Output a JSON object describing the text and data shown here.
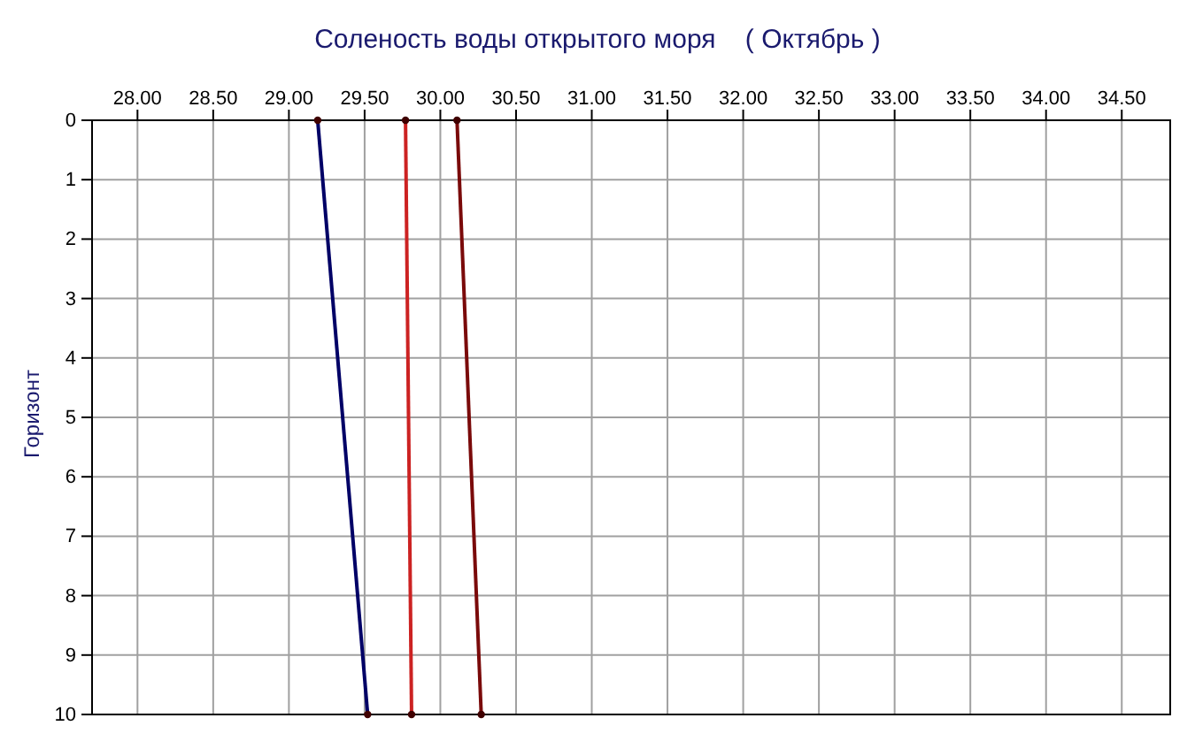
{
  "chart_data": {
    "type": "line",
    "title": "Соленость воды открытого моря    ( Октябрь )",
    "ylabel": "Горизонт",
    "series": [
      {
        "color": "#000066",
        "x": [
          29.19,
          29.52
        ],
        "values": [
          0,
          10
        ]
      },
      {
        "color": "#cc2222",
        "x": [
          29.77,
          29.81
        ],
        "values": [
          0,
          10
        ]
      },
      {
        "color": "#7a0a0a",
        "x": [
          30.11,
          30.27
        ],
        "values": [
          0,
          10
        ]
      }
    ],
    "xlim": [
      27.7,
      34.82
    ],
    "xticks": [
      {
        "value": 28,
        "label": "28.00"
      },
      {
        "value": 28.5,
        "label": "28.50"
      },
      {
        "value": 29,
        "label": "29.00"
      },
      {
        "value": 29.5,
        "label": "29.50"
      },
      {
        "value": 30,
        "label": "30.00"
      },
      {
        "value": 30.5,
        "label": "30.50"
      },
      {
        "value": 31,
        "label": "31.00"
      },
      {
        "value": 31.5,
        "label": "31.50"
      },
      {
        "value": 32,
        "label": "32.00"
      },
      {
        "value": 32.5,
        "label": "32.50"
      },
      {
        "value": 33,
        "label": "33.00"
      },
      {
        "value": 33.5,
        "label": "33.50"
      },
      {
        "value": 34,
        "label": "34.00"
      },
      {
        "value": 34.5,
        "label": "34.50"
      }
    ],
    "ylim": [
      10,
      0
    ],
    "yticks": [
      0,
      1,
      2,
      3,
      4,
      5,
      6,
      7,
      8,
      9,
      10
    ],
    "grid": true,
    "marker": "circle",
    "line_style": "solid"
  }
}
